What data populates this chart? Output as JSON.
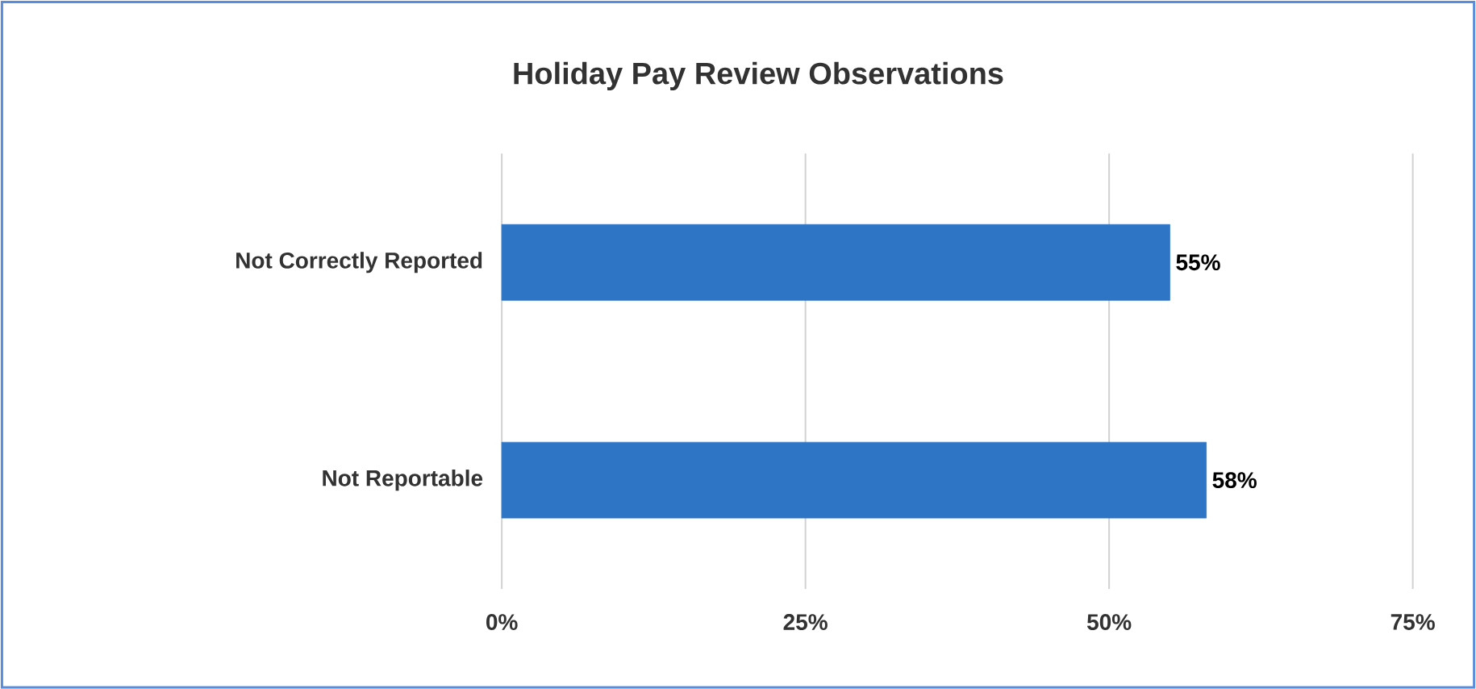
{
  "chart_data": {
    "type": "bar",
    "orientation": "horizontal",
    "title": "Holiday Pay Review Observations",
    "categories": [
      "Not Correctly Reported",
      "Not Reportable"
    ],
    "values": [
      55,
      58
    ],
    "color": "#2e75c6",
    "value_labels": [
      "55%",
      "58%"
    ],
    "xlim": [
      0,
      75
    ],
    "xticks": [
      {
        "value": 0,
        "label": "0%"
      },
      {
        "value": 25,
        "label": "25%"
      },
      {
        "value": 50,
        "label": "50%"
      },
      {
        "value": 75,
        "label": "75%"
      }
    ],
    "grid": "x"
  }
}
